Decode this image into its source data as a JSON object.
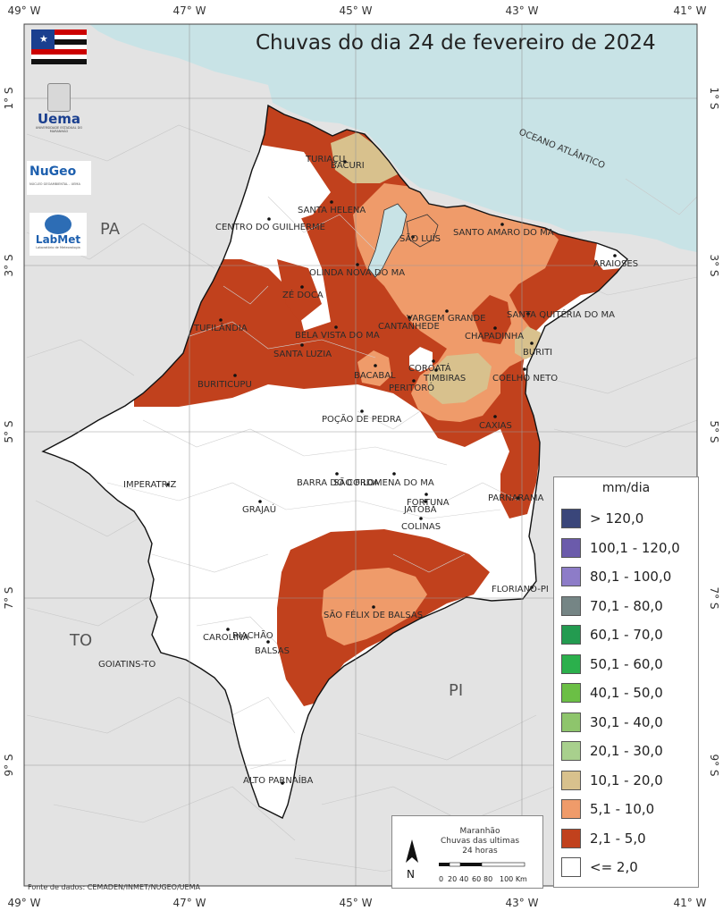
{
  "title": "Chuvas do dia 24 de fevereiro de 2024",
  "colors": {
    "ocean": "#c8e3e6",
    "land_outside": "#e3e3e3",
    "state_bg": "#ffffff",
    "c_2_5": "#c1411d",
    "c_5_10": "#ef9b6a",
    "c_10_20": "#d8c18d",
    "c_20_30": "#a8d08d"
  },
  "top_coords": [
    "49° W",
    "47° W",
    "45° W",
    "43° W",
    "41° W"
  ],
  "bottom_coords": [
    "49° W",
    "47° W",
    "45° W",
    "43° W",
    "41° W"
  ],
  "left_coords": [
    "1° S",
    "3° S",
    "5° S",
    "7° S",
    "9° S"
  ],
  "right_coords": [
    "1° S",
    "3° S",
    "5° S",
    "7° S",
    "9° S"
  ],
  "regions": {
    "pa": "PA",
    "to": "TO",
    "pi": "PI",
    "ocean": "OCEANO ATLÂNTICO"
  },
  "cities": [
    "TURIAÇU",
    "BACURI",
    "SANTA HELENA",
    "CENTRO DO GUILHERME",
    "SÃO LUÍS",
    "SANTO AMARO DO MA",
    "ARAIOSES",
    "OLINDA NOVA DO MA",
    "ZÉ DOCA",
    "VARGEM GRANDE",
    "CANTANHEDE",
    "SANTA QUITÉRIA DO MA",
    "TUFILÂNDIA",
    "BELA VISTA DO MA",
    "CHAPADINHA",
    "SANTA LUZIA",
    "BURITI",
    "COROATÁ",
    "BACABAL",
    "TIMBIRAS",
    "COELHO NETO",
    "BURITICUPU",
    "PERITORÓ",
    "POÇÃO DE PEDRA",
    "CAXIAS",
    "BARRA DO CORDA",
    "SÃO FILOMENA DO MA",
    "IMPERATRIZ",
    "FORTUNA",
    "GRAJAÚ",
    "JATOBÁ",
    "PARNARAMA",
    "COLINAS",
    "FLORIANO-PI",
    "SÃO FÉLIX DE BALSAS",
    "CAROLINA",
    "RIACHÃO",
    "BALSAS",
    "GOIATINS-TO",
    "ALTO PARNAÍBA"
  ],
  "legend": {
    "title": "mm/dia",
    "items": [
      {
        "label": "> 120,0",
        "color": "#3a467a"
      },
      {
        "label": "100,1 - 120,0",
        "color": "#6b5bab"
      },
      {
        "label": "80,1 - 100,0",
        "color": "#8d7cc8"
      },
      {
        "label": "70,1 - 80,0",
        "color": "#758585"
      },
      {
        "label": "60,1 - 70,0",
        "color": "#239b50"
      },
      {
        "label": "50,1 - 60,0",
        "color": "#2bb04c"
      },
      {
        "label": "40,1 - 50,0",
        "color": "#6bbf45"
      },
      {
        "label": "30,1 - 40,0",
        "color": "#8ec56c"
      },
      {
        "label": "20,1 - 30,0",
        "color": "#a8d08d"
      },
      {
        "label": "10,1 - 20,0",
        "color": "#d8c18d"
      },
      {
        "label": "5,1 - 10,0",
        "color": "#ef9b6a"
      },
      {
        "label": "2,1 - 5,0",
        "color": "#c1411d"
      },
      {
        "label": "<= 2,0",
        "color": "#ffffff"
      }
    ]
  },
  "infobox": {
    "line1": "Maranhão",
    "line2": "Chuvas das ultimas",
    "line3": "24 horas",
    "north": "N",
    "scale_labels": [
      "0",
      "20",
      "40",
      "60",
      "80",
      "100 Km"
    ]
  },
  "logos": {
    "uema": "Uema",
    "uema_sub": "UNIVERSIDADE ESTADUAL DO MARANHÃO",
    "nugeo": "NuGeo",
    "nugeo_sub": "NÚCLEO GEOAMBIENTAL - UEMA",
    "labmet": "LabMet",
    "labmet_sub": "Laboratório de Meteorologia"
  },
  "source": "Fonte de dados: CEMADEN/INMET/NUGEO/UEMA"
}
